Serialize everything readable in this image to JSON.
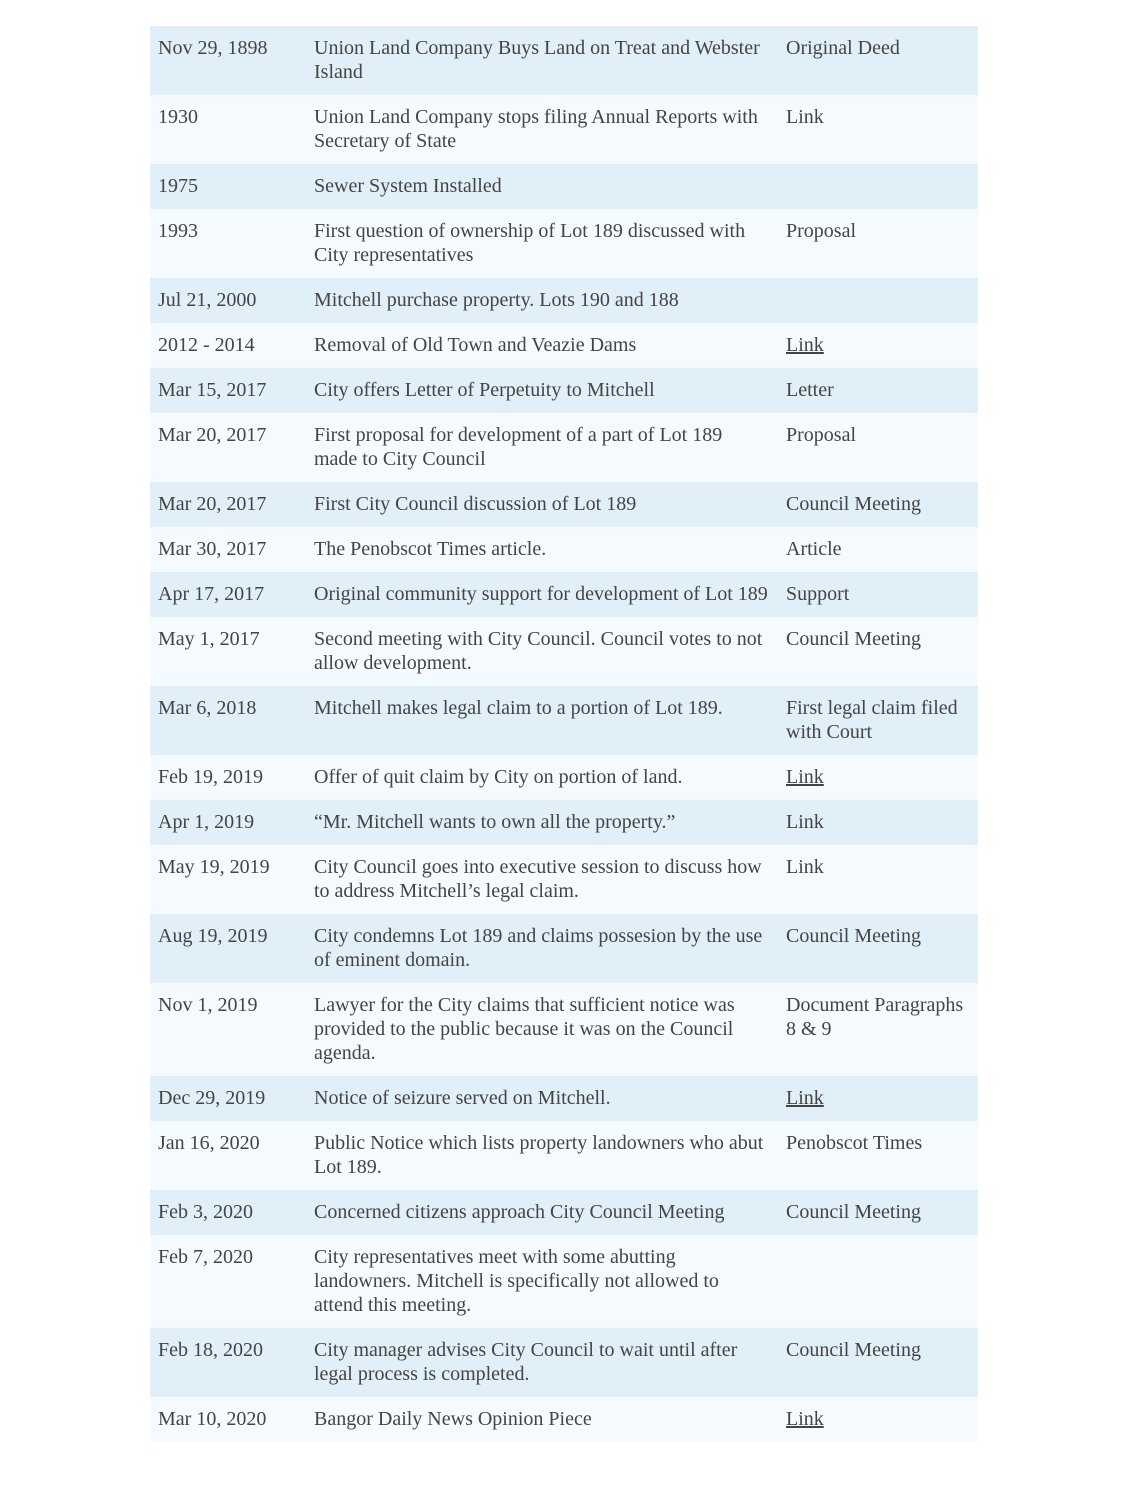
{
  "timeline": [
    {
      "date": "Nov 29, 1898",
      "event": "Union Land Company Buys Land on Treat and Webster Island",
      "source": "Original Deed",
      "underlined": false
    },
    {
      "date": "1930",
      "event": "Union Land Company stops filing Annual Reports with Secretary of State",
      "source": "Link",
      "underlined": false
    },
    {
      "date": "1975",
      "event": "Sewer System Installed",
      "source": "",
      "underlined": false
    },
    {
      "date": "1993",
      "event": "First question of ownership of Lot 189 discussed with City representatives",
      "source": "Proposal",
      "underlined": false
    },
    {
      "date": "Jul 21, 2000",
      "event": "Mitchell purchase property. Lots 190 and 188",
      "source": "",
      "underlined": false
    },
    {
      "date": "2012 - 2014",
      "event": "Removal of Old Town and Veazie Dams",
      "source": "Link",
      "underlined": true
    },
    {
      "date": "Mar 15, 2017",
      "event": "City offers Letter of Perpetuity to Mitchell",
      "source": "Letter",
      "underlined": false
    },
    {
      "date": "Mar 20, 2017",
      "event": "First proposal for development of a part of Lot 189 made to City Council",
      "source": "Proposal",
      "underlined": false
    },
    {
      "date": "Mar 20, 2017",
      "event": "First City Council discussion of Lot 189",
      "source": "Council Meeting",
      "underlined": false
    },
    {
      "date": "Mar 30, 2017",
      "event": "The Penobscot Times article.",
      "source": "Article",
      "underlined": false
    },
    {
      "date": "Apr 17, 2017",
      "event": "Original community support for development of Lot 189",
      "source": "Support",
      "underlined": false
    },
    {
      "date": "May 1, 2017",
      "event": "Second meeting with City Council. Council votes to not allow development.",
      "source": "Council Meeting",
      "underlined": false
    },
    {
      "date": "Mar 6, 2018",
      "event": "Mitchell makes legal claim to a portion of Lot 189.",
      "source": "First legal claim filed with Court",
      "underlined": false
    },
    {
      "date": "Feb 19, 2019",
      "event": "Offer of quit claim by City on portion of land.",
      "source": "Link",
      "underlined": true
    },
    {
      "date": "Apr 1, 2019",
      "event": "“Mr. Mitchell wants to own all the property.”",
      "source": "Link",
      "underlined": false
    },
    {
      "date": "May 19, 2019",
      "event": "City Council goes into executive session to discuss how to address Mitchell’s legal claim.",
      "source": "Link",
      "underlined": false
    },
    {
      "date": "Aug 19, 2019",
      "event": "City condemns Lot 189 and claims possesion by the use of eminent domain.",
      "source": "Council Meeting",
      "underlined": false
    },
    {
      "date": "Nov 1, 2019",
      "event": "Lawyer for the City claims that sufficient notice was provided to the public because it was on the Council agenda.",
      "source": "Document Paragraphs 8 & 9",
      "underlined": false
    },
    {
      "date": "Dec 29, 2019",
      "event": "Notice of seizure served on Mitchell.",
      "source": "Link",
      "underlined": true
    },
    {
      "date": "Jan 16, 2020",
      "event": "Public Notice which lists property landowners who abut Lot 189.",
      "source": "Penobscot Times",
      "underlined": false
    },
    {
      "date": "Feb 3, 2020",
      "event": "Concerned citizens approach City Council Meeting",
      "source": "Council Meeting",
      "underlined": false
    },
    {
      "date": "Feb 7, 2020",
      "event": "City representatives meet with some abutting landowners. Mitchell is specifically not allowed to attend this meeting.",
      "source": "",
      "underlined": false
    },
    {
      "date": "Feb 18, 2020",
      "event": "City manager advises City Council to wait until after legal process is completed.",
      "source": "Council Meeting",
      "underlined": false
    },
    {
      "date": "Mar 10, 2020",
      "event": "Bangor Daily News Opinion Piece",
      "source": "Link",
      "underlined": true
    }
  ]
}
